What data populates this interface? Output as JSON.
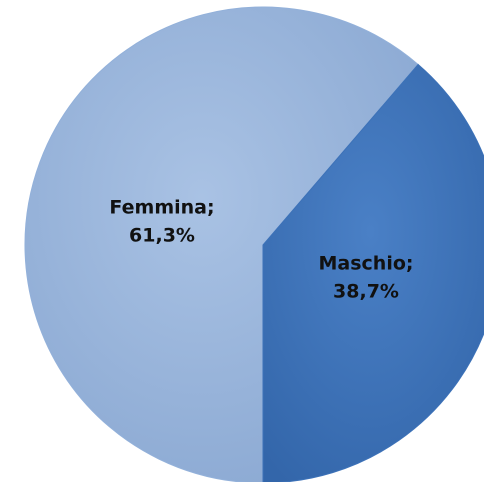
{
  "chart_data": {
    "type": "pie",
    "categories": [
      "Femmina;",
      "Maschio;"
    ],
    "values": [
      61.3,
      38.7
    ],
    "value_labels": [
      "61,3%",
      "38,7%"
    ],
    "colors": [
      "#93b1da",
      "#3d72b8"
    ]
  }
}
